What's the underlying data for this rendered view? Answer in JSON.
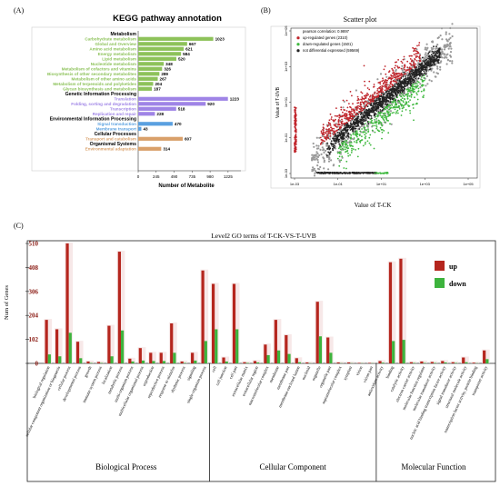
{
  "panelA": {
    "label": "(A)",
    "chart_data": {
      "type": "bar",
      "title": "KEGG pathway annotation",
      "xlabel": "Number of Metabolite",
      "xlim": [
        0,
        1400
      ],
      "xticks": [
        "0",
        "245",
        "490",
        "735",
        "980",
        "1225"
      ],
      "groups": [
        {
          "name": "Metabolism",
          "color": "#8dc25a",
          "items": [
            {
              "label": "Carbohydrate metabolism",
              "value": 1023
            },
            {
              "label": "Global and Overview",
              "value": 667
            },
            {
              "label": "Amino acid metabolism",
              "value": 621
            },
            {
              "label": "Energy metabolism",
              "value": 584
            },
            {
              "label": "Lipid metabolism",
              "value": 520
            },
            {
              "label": "Nucleotide metabolism",
              "value": 348
            },
            {
              "label": "Metabolism of cofactors and vitamins",
              "value": 326
            },
            {
              "label": "Biosynthesis of other secondary metabolites",
              "value": 289
            },
            {
              "label": "Metabolism of other amino acids",
              "value": 267
            },
            {
              "label": "Metabolism of terpenoids and polyketides",
              "value": 204
            },
            {
              "label": "Glycan biosynthesis and metabolism",
              "value": 187
            }
          ]
        },
        {
          "name": "Genetic Information Processing",
          "color": "#9f84e6",
          "items": [
            {
              "label": "Translation",
              "value": 1223
            },
            {
              "label": "Folding, sorting and degradation",
              "value": 920
            },
            {
              "label": "Transcription",
              "value": 518
            },
            {
              "label": "Replication and repair",
              "value": 228
            }
          ]
        },
        {
          "name": "Environmental Information Processing",
          "color": "#5aa0e0",
          "items": [
            {
              "label": "Signal transduction",
              "value": 470
            },
            {
              "label": "Membrane transport",
              "value": 43
            }
          ]
        },
        {
          "name": "Cellular Processes",
          "color": "#d9a06a",
          "items": [
            {
              "label": "Transport and catabolism",
              "value": 607
            }
          ]
        },
        {
          "name": "Organismal Systems",
          "color": "#d9a06a",
          "items": [
            {
              "label": "Environmental adaptation",
              "value": 314
            }
          ]
        }
      ]
    }
  },
  "panelB": {
    "label": "(B)",
    "chart_data": {
      "type": "scatter",
      "title": "Scatter plot",
      "xlabel": "Value of T-CK",
      "ylabel": "Value of T-UVB",
      "scale": "log",
      "xticks": [
        "1e-03",
        "1e-01",
        "1e+01",
        "1e+03",
        "1e+05"
      ],
      "yticks": [
        "1e-03",
        "1e-01",
        "1e+01",
        "1e+03",
        "1e+05"
      ],
      "legend": [
        {
          "label": "pearson correlation: 0.9897",
          "color": ""
        },
        {
          "label": "up-regulated genes (2310)",
          "color": "#c0262c"
        },
        {
          "label": "down-regulated genes (1501)",
          "color": "#3fb83f"
        },
        {
          "label": "not differential expressed (59569)",
          "color": "#222222"
        }
      ]
    }
  },
  "panelC": {
    "label": "(C)",
    "chart_data": {
      "type": "bar",
      "title": "Level2 GO terms of T-CK-VS-T-UVB",
      "ylabel": "Num of Genes",
      "ylim": [
        0,
        510
      ],
      "yticks": [
        "0",
        "102",
        "204",
        "306",
        "408",
        "510"
      ],
      "legend_position": "top-right",
      "series": [
        {
          "name": "up",
          "color": "#b5261e"
        },
        {
          "name": "down",
          "color": "#3db33d"
        }
      ],
      "groups": [
        "Biological Process",
        "Cellular Component",
        "Molecular Function"
      ],
      "categories": [
        {
          "label": "biological regulation",
          "up": 185,
          "down": 38,
          "group": 0
        },
        {
          "label": "cellular component organization or biogenesis",
          "up": 145,
          "down": 30,
          "group": 0
        },
        {
          "label": "cellular process",
          "up": 510,
          "down": 130,
          "group": 0
        },
        {
          "label": "developmental process",
          "up": 92,
          "down": 22,
          "group": 0
        },
        {
          "label": "growth",
          "up": 8,
          "down": 2,
          "group": 0
        },
        {
          "label": "immune system process",
          "up": 6,
          "down": 2,
          "group": 0
        },
        {
          "label": "localization",
          "up": 160,
          "down": 30,
          "group": 0
        },
        {
          "label": "metabolic process",
          "up": 475,
          "down": 140,
          "group": 0
        },
        {
          "label": "multi-organism process",
          "up": 20,
          "down": 8,
          "group": 0
        },
        {
          "label": "multicellular organismal process",
          "up": 65,
          "down": 12,
          "group": 0
        },
        {
          "label": "reproduction",
          "up": 45,
          "down": 10,
          "group": 0
        },
        {
          "label": "reproductive process",
          "up": 45,
          "down": 10,
          "group": 0
        },
        {
          "label": "response to stimulus",
          "up": 170,
          "down": 45,
          "group": 0
        },
        {
          "label": "rhythmic process",
          "up": 8,
          "down": 2,
          "group": 0
        },
        {
          "label": "signaling",
          "up": 45,
          "down": 12,
          "group": 0
        },
        {
          "label": "single-organism process",
          "up": 395,
          "down": 95,
          "group": 0
        },
        {
          "label": "cell",
          "up": 338,
          "down": 145,
          "group": 1
        },
        {
          "label": "cell junction",
          "up": 25,
          "down": 8,
          "group": 1
        },
        {
          "label": "cell part",
          "up": 338,
          "down": 145,
          "group": 1
        },
        {
          "label": "extracellular matrix",
          "up": 5,
          "down": 2,
          "group": 1
        },
        {
          "label": "extracellular region",
          "up": 10,
          "down": 4,
          "group": 1
        },
        {
          "label": "macromolecular complex",
          "up": 80,
          "down": 35,
          "group": 1
        },
        {
          "label": "membrane",
          "up": 185,
          "down": 55,
          "group": 1
        },
        {
          "label": "membrane part",
          "up": 120,
          "down": 40,
          "group": 1
        },
        {
          "label": "membrane-enclosed lumen",
          "up": 22,
          "down": 5,
          "group": 1
        },
        {
          "label": "nucleoid",
          "up": 4,
          "down": 1,
          "group": 1
        },
        {
          "label": "organelle",
          "up": 262,
          "down": 115,
          "group": 1
        },
        {
          "label": "organelle part",
          "up": 110,
          "down": 45,
          "group": 1
        },
        {
          "label": "supramolecular complex",
          "up": 4,
          "down": 1,
          "group": 1
        },
        {
          "label": "symplast",
          "up": 4,
          "down": 1,
          "group": 1
        },
        {
          "label": "virion",
          "up": 2,
          "down": 1,
          "group": 1
        },
        {
          "label": "virion part",
          "up": 2,
          "down": 1,
          "group": 1
        },
        {
          "label": "antioxidant activity",
          "up": 10,
          "down": 3,
          "group": 2
        },
        {
          "label": "binding",
          "up": 430,
          "down": 95,
          "group": 2
        },
        {
          "label": "catalytic activity",
          "up": 445,
          "down": 100,
          "group": 2
        },
        {
          "label": "electron carrier activity",
          "up": 5,
          "down": 2,
          "group": 2
        },
        {
          "label": "molecular function regulator",
          "up": 8,
          "down": 2,
          "group": 2
        },
        {
          "label": "molecular transducer activity",
          "up": 6,
          "down": 2,
          "group": 2
        },
        {
          "label": "nucleic acid binding transcription factor activity",
          "up": 10,
          "down": 4,
          "group": 2
        },
        {
          "label": "signal transducer activity",
          "up": 5,
          "down": 2,
          "group": 2
        },
        {
          "label": "structural molecule activity",
          "up": 25,
          "down": 5,
          "group": 2
        },
        {
          "label": "transcription factor activity, protein binding",
          "up": 3,
          "down": 1,
          "group": 2
        },
        {
          "label": "transporter activity",
          "up": 55,
          "down": 18,
          "group": 2
        }
      ]
    }
  }
}
